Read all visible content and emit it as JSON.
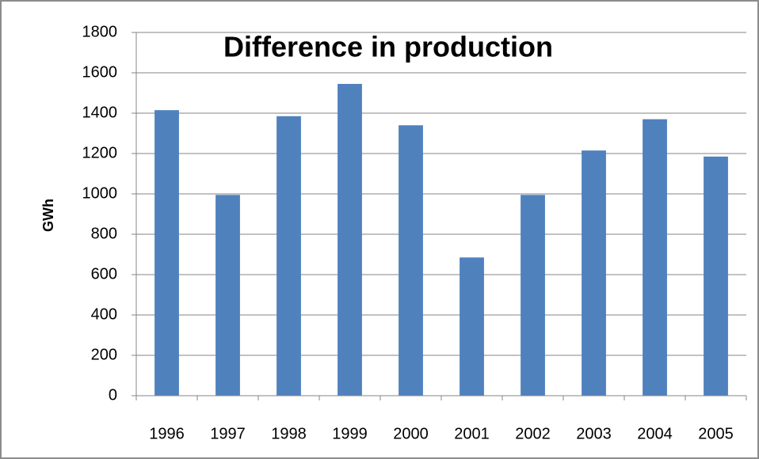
{
  "chart_data": {
    "type": "bar",
    "title": "Difference in production",
    "y_label": "GWh",
    "categories": [
      "1996",
      "1997",
      "1998",
      "1999",
      "2000",
      "2001",
      "2002",
      "2003",
      "2004",
      "2005"
    ],
    "values": [
      1415,
      995,
      1385,
      1545,
      1340,
      685,
      995,
      1215,
      1370,
      1185
    ],
    "color": "#4f81bd",
    "ylim": [
      0,
      1800
    ],
    "yticks": [
      0,
      200,
      400,
      600,
      800,
      1000,
      1200,
      1400,
      1600,
      1800
    ],
    "grid": true
  }
}
